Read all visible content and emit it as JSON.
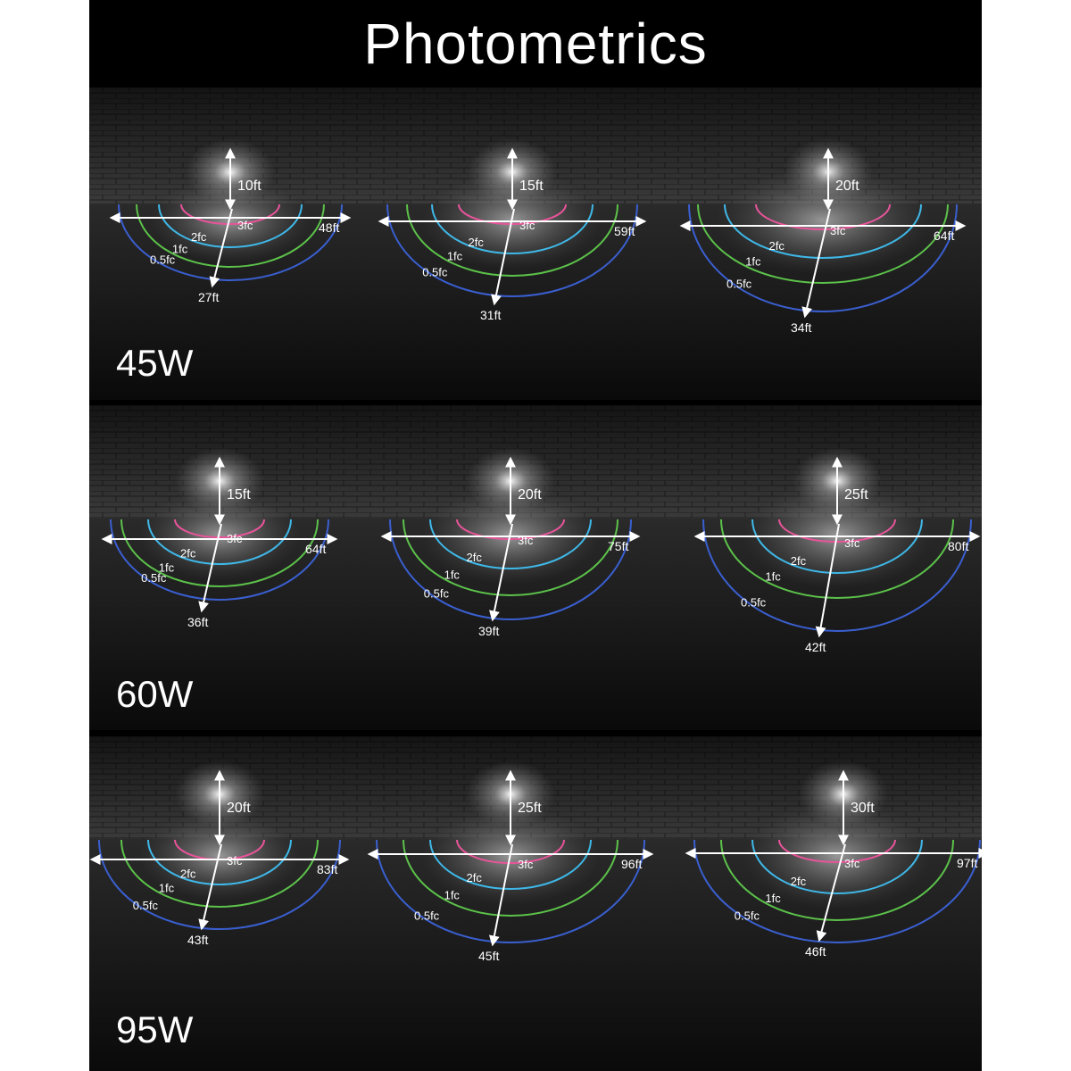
{
  "title": "Photometrics",
  "contour_labels": [
    "3fc",
    "2fc",
    "1fc",
    "0.5fc"
  ],
  "contour_colors": [
    "#e8549a",
    "#3fb8e8",
    "#5cc24a",
    "#3a5fd0"
  ],
  "panels": [
    {
      "wattage": "45W",
      "diagrams": [
        {
          "height": "10ft",
          "width": "48ft",
          "depth": "27ft"
        },
        {
          "height": "15ft",
          "width": "59ft",
          "depth": "31ft"
        },
        {
          "height": "20ft",
          "width": "64ft",
          "depth": "34ft"
        }
      ]
    },
    {
      "wattage": "60W",
      "diagrams": [
        {
          "height": "15ft",
          "width": "64ft",
          "depth": "36ft"
        },
        {
          "height": "20ft",
          "width": "75ft",
          "depth": "39ft"
        },
        {
          "height": "25ft",
          "width": "80ft",
          "depth": "42ft"
        }
      ]
    },
    {
      "wattage": "95W",
      "diagrams": [
        {
          "height": "20ft",
          "width": "83ft",
          "depth": "43ft"
        },
        {
          "height": "25ft",
          "width": "96ft",
          "depth": "45ft"
        },
        {
          "height": "30ft",
          "width": "97ft",
          "depth": "46ft"
        }
      ]
    }
  ]
}
